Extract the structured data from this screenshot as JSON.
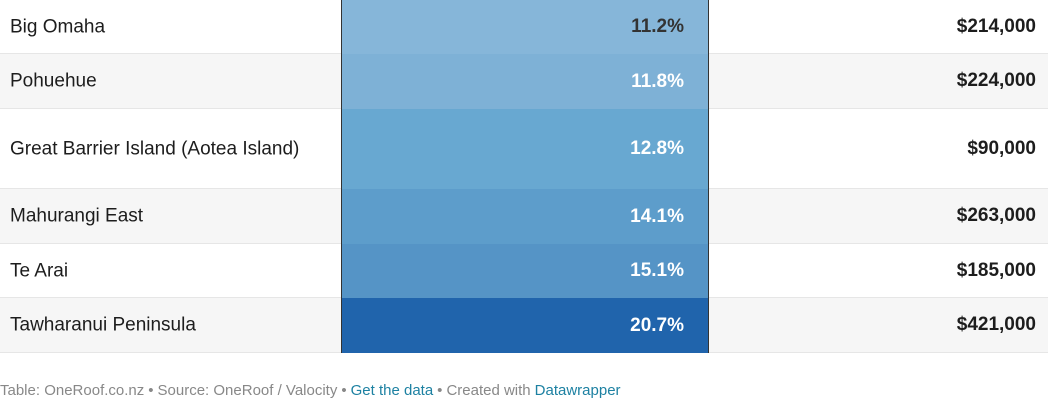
{
  "table": {
    "rows": [
      [
        "Big Omaha",
        "11.2%",
        "$214,000"
      ],
      [
        "Pohuehue",
        "11.8%",
        "$224,000"
      ],
      [
        "Great Barrier Island (Aotea Island)",
        "12.8%",
        "$90,000"
      ],
      [
        "Mahurangi East",
        "14.1%",
        "$263,000"
      ],
      [
        "Te Arai",
        "15.1%",
        "$185,000"
      ],
      [
        "Tawharanui Peninsula",
        "20.7%",
        "$421,000"
      ]
    ]
  },
  "footer": {
    "parts": [
      "Table: OneRoof.co.nz",
      "•",
      "Source: OneRoof / Valocity",
      "•",
      "Get the data",
      "•",
      "Created with",
      "Datawrapper"
    ]
  }
}
